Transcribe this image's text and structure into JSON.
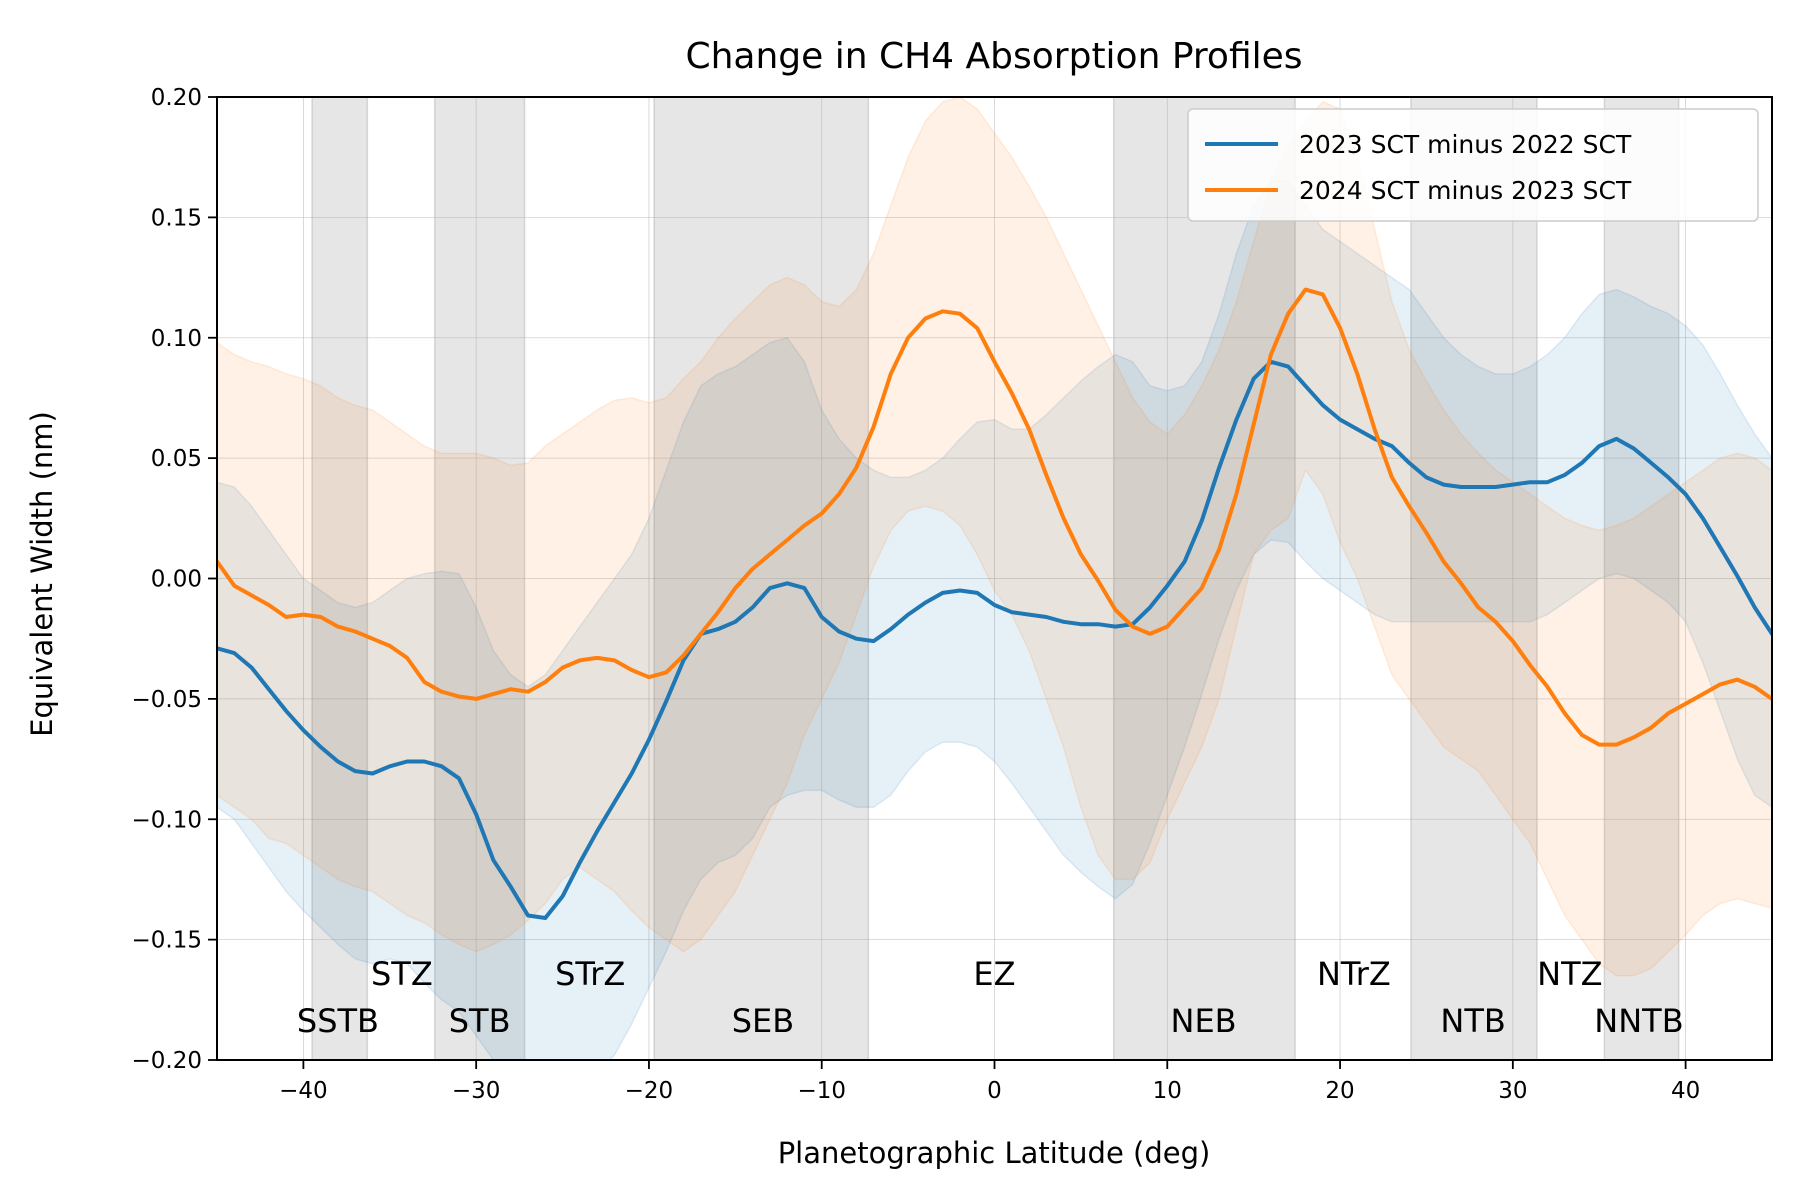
{
  "chart_data": {
    "type": "line",
    "title": "Change in CH4 Absorption Profiles",
    "xlabel": "Planetographic Latitude (deg)",
    "ylabel": "Equivalent Width (nm)",
    "xlim": [
      -45,
      45
    ],
    "ylim": [
      -0.2,
      0.2
    ],
    "xticks": [
      -40,
      -30,
      -20,
      -10,
      0,
      10,
      20,
      30,
      40
    ],
    "xtick_labels": [
      "−40",
      "−30",
      "−20",
      "−10",
      "0",
      "10",
      "20",
      "30",
      "40"
    ],
    "yticks": [
      -0.2,
      -0.15,
      -0.1,
      -0.05,
      0.0,
      0.05,
      0.1,
      0.15,
      0.2
    ],
    "ytick_labels": [
      "−0.20",
      "−0.15",
      "−0.10",
      "−0.05",
      "0.00",
      "0.05",
      "0.10",
      "0.15",
      "0.20"
    ],
    "grid": true,
    "legend_position": "top-right",
    "belts": [
      {
        "label": "SSTB",
        "x0": -39.5,
        "x1": -36.3
      },
      {
        "label": "STB",
        "x0": -32.4,
        "x1": -27.2
      },
      {
        "label": "SEB",
        "x0": -19.7,
        "x1": -7.3
      },
      {
        "label": "NEB",
        "x0": 6.9,
        "x1": 17.4
      },
      {
        "label": "NTB",
        "x0": 24.1,
        "x1": 31.4
      },
      {
        "label": "NNTB",
        "x0": 35.3,
        "x1": 39.6
      }
    ],
    "region_labels": [
      {
        "text": "SSTB",
        "x": -38,
        "row": "lower"
      },
      {
        "text": "STZ",
        "x": -34.3,
        "row": "upper"
      },
      {
        "text": "STB",
        "x": -29.8,
        "row": "lower"
      },
      {
        "text": "STrZ",
        "x": -23.4,
        "row": "upper"
      },
      {
        "text": "SEB",
        "x": -13.4,
        "row": "lower"
      },
      {
        "text": "EZ",
        "x": 0,
        "row": "upper"
      },
      {
        "text": "NEB",
        "x": 12.1,
        "row": "lower"
      },
      {
        "text": "NTrZ",
        "x": 20.8,
        "row": "upper"
      },
      {
        "text": "NTB",
        "x": 27.7,
        "row": "lower"
      },
      {
        "text": "NTZ",
        "x": 33.3,
        "row": "upper"
      },
      {
        "text": "NNTB",
        "x": 37.3,
        "row": "lower"
      }
    ],
    "series": [
      {
        "name": "2023 SCT minus 2022 SCT",
        "color": "#1f77b4",
        "x": [
          -45,
          -44,
          -43,
          -42,
          -41,
          -40,
          -39,
          -38,
          -37,
          -36,
          -35,
          -34,
          -33,
          -32,
          -31,
          -30,
          -29,
          -28,
          -27,
          -26,
          -25,
          -24,
          -23,
          -22,
          -21,
          -20,
          -19,
          -18,
          -17,
          -16,
          -15,
          -14,
          -13,
          -12,
          -11,
          -10,
          -9,
          -8,
          -7,
          -6,
          -5,
          -4,
          -3,
          -2,
          -1,
          0,
          1,
          2,
          3,
          4,
          5,
          6,
          7,
          8,
          9,
          10,
          11,
          12,
          13,
          14,
          15,
          16,
          17,
          18,
          19,
          20,
          21,
          22,
          23,
          24,
          25,
          26,
          27,
          28,
          29,
          30,
          31,
          32,
          33,
          34,
          35,
          36,
          37,
          38,
          39,
          40,
          41,
          42,
          43,
          44,
          45
        ],
        "y": [
          -0.029,
          -0.031,
          -0.037,
          -0.046,
          -0.055,
          -0.063,
          -0.07,
          -0.076,
          -0.08,
          -0.081,
          -0.078,
          -0.076,
          -0.076,
          -0.078,
          -0.083,
          -0.098,
          -0.117,
          -0.128,
          -0.14,
          -0.141,
          -0.132,
          -0.118,
          -0.105,
          -0.093,
          -0.081,
          -0.067,
          -0.051,
          -0.034,
          -0.023,
          -0.021,
          -0.018,
          -0.012,
          -0.004,
          -0.002,
          -0.004,
          -0.016,
          -0.022,
          -0.025,
          -0.026,
          -0.021,
          -0.015,
          -0.01,
          -0.006,
          -0.005,
          -0.006,
          -0.011,
          -0.014,
          -0.015,
          -0.016,
          -0.018,
          -0.019,
          -0.019,
          -0.02,
          -0.019,
          -0.012,
          -0.003,
          0.007,
          0.024,
          0.046,
          0.066,
          0.083,
          0.09,
          0.088,
          0.08,
          0.072,
          0.066,
          0.062,
          0.058,
          0.055,
          0.048,
          0.042,
          0.039,
          0.038,
          0.038,
          0.038,
          0.039,
          0.04,
          0.04,
          0.043,
          0.048,
          0.055,
          0.058,
          0.054,
          0.048,
          0.042,
          0.035,
          0.025,
          0.013,
          0.001,
          -0.012,
          -0.023
        ],
        "upper": [
          0.04,
          0.038,
          0.03,
          0.02,
          0.01,
          0.0,
          -0.005,
          -0.01,
          -0.012,
          -0.01,
          -0.005,
          0.0,
          0.002,
          0.003,
          0.002,
          -0.012,
          -0.03,
          -0.04,
          -0.045,
          -0.04,
          -0.03,
          -0.02,
          -0.01,
          0.0,
          0.01,
          0.025,
          0.045,
          0.065,
          0.08,
          0.085,
          0.088,
          0.093,
          0.098,
          0.1,
          0.09,
          0.07,
          0.058,
          0.05,
          0.045,
          0.042,
          0.042,
          0.045,
          0.05,
          0.058,
          0.065,
          0.066,
          0.062,
          0.062,
          0.068,
          0.075,
          0.082,
          0.088,
          0.093,
          0.09,
          0.08,
          0.078,
          0.08,
          0.09,
          0.11,
          0.135,
          0.155,
          0.165,
          0.165,
          0.155,
          0.145,
          0.14,
          0.135,
          0.13,
          0.125,
          0.12,
          0.11,
          0.1,
          0.093,
          0.088,
          0.085,
          0.085,
          0.088,
          0.093,
          0.1,
          0.11,
          0.118,
          0.12,
          0.117,
          0.113,
          0.11,
          0.105,
          0.097,
          0.085,
          0.072,
          0.06,
          0.05
        ],
        "lower": [
          -0.095,
          -0.1,
          -0.11,
          -0.12,
          -0.13,
          -0.138,
          -0.145,
          -0.152,
          -0.158,
          -0.16,
          -0.158,
          -0.16,
          -0.168,
          -0.175,
          -0.18,
          -0.19,
          -0.2,
          -0.21,
          -0.215,
          -0.218,
          -0.215,
          -0.21,
          -0.205,
          -0.198,
          -0.185,
          -0.17,
          -0.155,
          -0.138,
          -0.125,
          -0.118,
          -0.115,
          -0.108,
          -0.095,
          -0.09,
          -0.088,
          -0.088,
          -0.092,
          -0.095,
          -0.095,
          -0.09,
          -0.08,
          -0.072,
          -0.068,
          -0.068,
          -0.07,
          -0.076,
          -0.085,
          -0.095,
          -0.105,
          -0.115,
          -0.122,
          -0.128,
          -0.133,
          -0.127,
          -0.11,
          -0.09,
          -0.07,
          -0.048,
          -0.025,
          -0.005,
          0.01,
          0.016,
          0.015,
          0.007,
          0.0,
          -0.005,
          -0.01,
          -0.015,
          -0.018,
          -0.018,
          -0.018,
          -0.018,
          -0.018,
          -0.018,
          -0.018,
          -0.018,
          -0.018,
          -0.015,
          -0.01,
          -0.005,
          0.0,
          0.002,
          0.0,
          -0.005,
          -0.01,
          -0.018,
          -0.035,
          -0.055,
          -0.075,
          -0.09,
          -0.095
        ]
      },
      {
        "name": "2024 SCT minus 2023 SCT",
        "color": "#ff7f0e",
        "x": [
          -45,
          -44,
          -43,
          -42,
          -41,
          -40,
          -39,
          -38,
          -37,
          -36,
          -35,
          -34,
          -33,
          -32,
          -31,
          -30,
          -29,
          -28,
          -27,
          -26,
          -25,
          -24,
          -23,
          -22,
          -21,
          -20,
          -19,
          -18,
          -17,
          -16,
          -15,
          -14,
          -13,
          -12,
          -11,
          -10,
          -9,
          -8,
          -7,
          -6,
          -5,
          -4,
          -3,
          -2,
          -1,
          0,
          1,
          2,
          3,
          4,
          5,
          6,
          7,
          8,
          9,
          10,
          11,
          12,
          13,
          14,
          15,
          16,
          17,
          18,
          19,
          20,
          21,
          22,
          23,
          24,
          25,
          26,
          27,
          28,
          29,
          30,
          31,
          32,
          33,
          34,
          35,
          36,
          37,
          38,
          39,
          40,
          41,
          42,
          43,
          44,
          45
        ],
        "y": [
          0.007,
          -0.003,
          -0.007,
          -0.011,
          -0.016,
          -0.015,
          -0.016,
          -0.02,
          -0.022,
          -0.025,
          -0.028,
          -0.033,
          -0.043,
          -0.047,
          -0.049,
          -0.05,
          -0.048,
          -0.046,
          -0.047,
          -0.043,
          -0.037,
          -0.034,
          -0.033,
          -0.034,
          -0.038,
          -0.041,
          -0.039,
          -0.032,
          -0.023,
          -0.014,
          -0.004,
          0.004,
          0.01,
          0.016,
          0.022,
          0.027,
          0.035,
          0.046,
          0.063,
          0.085,
          0.1,
          0.108,
          0.111,
          0.11,
          0.104,
          0.09,
          0.077,
          0.062,
          0.043,
          0.025,
          0.01,
          -0.001,
          -0.013,
          -0.02,
          -0.023,
          -0.02,
          -0.012,
          -0.004,
          0.012,
          0.035,
          0.064,
          0.093,
          0.11,
          0.12,
          0.118,
          0.104,
          0.085,
          0.062,
          0.042,
          0.03,
          0.019,
          0.007,
          -0.002,
          -0.012,
          -0.018,
          -0.026,
          -0.036,
          -0.045,
          -0.056,
          -0.065,
          -0.069,
          -0.069,
          -0.066,
          -0.062,
          -0.056,
          -0.052,
          -0.048,
          -0.044,
          -0.042,
          -0.045,
          -0.05
        ],
        "upper": [
          0.098,
          0.093,
          0.09,
          0.088,
          0.085,
          0.083,
          0.08,
          0.075,
          0.072,
          0.07,
          0.065,
          0.06,
          0.055,
          0.052,
          0.052,
          0.052,
          0.05,
          0.047,
          0.048,
          0.055,
          0.06,
          0.065,
          0.07,
          0.074,
          0.075,
          0.073,
          0.075,
          0.083,
          0.09,
          0.1,
          0.108,
          0.115,
          0.122,
          0.125,
          0.122,
          0.115,
          0.113,
          0.12,
          0.135,
          0.155,
          0.175,
          0.19,
          0.198,
          0.2,
          0.195,
          0.185,
          0.175,
          0.163,
          0.15,
          0.135,
          0.12,
          0.105,
          0.09,
          0.075,
          0.065,
          0.06,
          0.068,
          0.08,
          0.095,
          0.115,
          0.14,
          0.165,
          0.18,
          0.19,
          0.198,
          0.195,
          0.175,
          0.145,
          0.115,
          0.095,
          0.082,
          0.07,
          0.06,
          0.052,
          0.045,
          0.04,
          0.035,
          0.03,
          0.025,
          0.022,
          0.02,
          0.022,
          0.025,
          0.03,
          0.035,
          0.04,
          0.045,
          0.05,
          0.052,
          0.05,
          0.045
        ],
        "lower": [
          -0.09,
          -0.095,
          -0.1,
          -0.108,
          -0.11,
          -0.115,
          -0.12,
          -0.125,
          -0.128,
          -0.13,
          -0.135,
          -0.14,
          -0.143,
          -0.148,
          -0.152,
          -0.155,
          -0.152,
          -0.148,
          -0.142,
          -0.135,
          -0.125,
          -0.12,
          -0.125,
          -0.13,
          -0.138,
          -0.145,
          -0.15,
          -0.155,
          -0.15,
          -0.14,
          -0.13,
          -0.115,
          -0.1,
          -0.085,
          -0.065,
          -0.05,
          -0.035,
          -0.015,
          0.005,
          0.02,
          0.028,
          0.03,
          0.028,
          0.022,
          0.01,
          -0.005,
          -0.015,
          -0.03,
          -0.05,
          -0.07,
          -0.095,
          -0.115,
          -0.125,
          -0.125,
          -0.118,
          -0.1,
          -0.085,
          -0.07,
          -0.05,
          -0.02,
          0.01,
          0.02,
          0.025,
          0.045,
          0.035,
          0.015,
          0.0,
          -0.02,
          -0.04,
          -0.05,
          -0.06,
          -0.07,
          -0.075,
          -0.08,
          -0.09,
          -0.1,
          -0.11,
          -0.125,
          -0.14,
          -0.15,
          -0.16,
          -0.165,
          -0.165,
          -0.162,
          -0.155,
          -0.148,
          -0.14,
          -0.135,
          -0.133,
          -0.135,
          -0.137
        ]
      }
    ]
  }
}
